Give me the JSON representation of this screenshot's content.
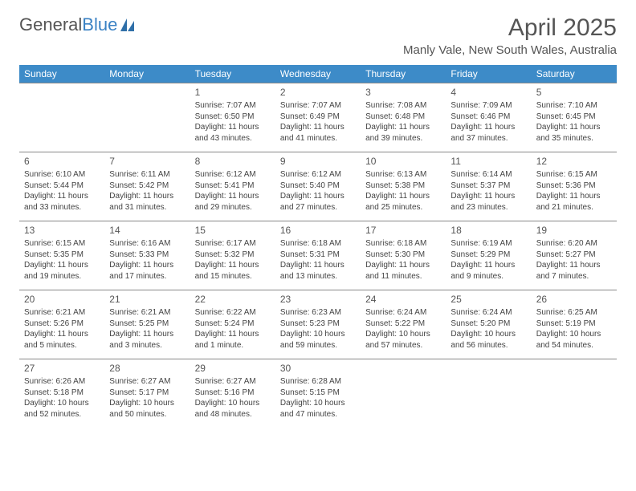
{
  "brand": {
    "part1": "General",
    "part2": "Blue"
  },
  "title": "April 2025",
  "location": "Manly Vale, New South Wales, Australia",
  "colors": {
    "header_bg": "#3d8bc8",
    "header_fg": "#ffffff",
    "cell_border": "#888888",
    "text": "#444444",
    "brand_blue": "#3b82c4"
  },
  "fonts": {
    "title_size": 30,
    "location_size": 15,
    "dayheader_size": 12,
    "daynum_size": 12,
    "body_size": 10
  },
  "day_headers": [
    "Sunday",
    "Monday",
    "Tuesday",
    "Wednesday",
    "Thursday",
    "Friday",
    "Saturday"
  ],
  "weeks": [
    [
      null,
      null,
      {
        "n": "1",
        "sr": "Sunrise: 7:07 AM",
        "ss": "Sunset: 6:50 PM",
        "dl": "Daylight: 11 hours and 43 minutes."
      },
      {
        "n": "2",
        "sr": "Sunrise: 7:07 AM",
        "ss": "Sunset: 6:49 PM",
        "dl": "Daylight: 11 hours and 41 minutes."
      },
      {
        "n": "3",
        "sr": "Sunrise: 7:08 AM",
        "ss": "Sunset: 6:48 PM",
        "dl": "Daylight: 11 hours and 39 minutes."
      },
      {
        "n": "4",
        "sr": "Sunrise: 7:09 AM",
        "ss": "Sunset: 6:46 PM",
        "dl": "Daylight: 11 hours and 37 minutes."
      },
      {
        "n": "5",
        "sr": "Sunrise: 7:10 AM",
        "ss": "Sunset: 6:45 PM",
        "dl": "Daylight: 11 hours and 35 minutes."
      }
    ],
    [
      {
        "n": "6",
        "sr": "Sunrise: 6:10 AM",
        "ss": "Sunset: 5:44 PM",
        "dl": "Daylight: 11 hours and 33 minutes."
      },
      {
        "n": "7",
        "sr": "Sunrise: 6:11 AM",
        "ss": "Sunset: 5:42 PM",
        "dl": "Daylight: 11 hours and 31 minutes."
      },
      {
        "n": "8",
        "sr": "Sunrise: 6:12 AM",
        "ss": "Sunset: 5:41 PM",
        "dl": "Daylight: 11 hours and 29 minutes."
      },
      {
        "n": "9",
        "sr": "Sunrise: 6:12 AM",
        "ss": "Sunset: 5:40 PM",
        "dl": "Daylight: 11 hours and 27 minutes."
      },
      {
        "n": "10",
        "sr": "Sunrise: 6:13 AM",
        "ss": "Sunset: 5:38 PM",
        "dl": "Daylight: 11 hours and 25 minutes."
      },
      {
        "n": "11",
        "sr": "Sunrise: 6:14 AM",
        "ss": "Sunset: 5:37 PM",
        "dl": "Daylight: 11 hours and 23 minutes."
      },
      {
        "n": "12",
        "sr": "Sunrise: 6:15 AM",
        "ss": "Sunset: 5:36 PM",
        "dl": "Daylight: 11 hours and 21 minutes."
      }
    ],
    [
      {
        "n": "13",
        "sr": "Sunrise: 6:15 AM",
        "ss": "Sunset: 5:35 PM",
        "dl": "Daylight: 11 hours and 19 minutes."
      },
      {
        "n": "14",
        "sr": "Sunrise: 6:16 AM",
        "ss": "Sunset: 5:33 PM",
        "dl": "Daylight: 11 hours and 17 minutes."
      },
      {
        "n": "15",
        "sr": "Sunrise: 6:17 AM",
        "ss": "Sunset: 5:32 PM",
        "dl": "Daylight: 11 hours and 15 minutes."
      },
      {
        "n": "16",
        "sr": "Sunrise: 6:18 AM",
        "ss": "Sunset: 5:31 PM",
        "dl": "Daylight: 11 hours and 13 minutes."
      },
      {
        "n": "17",
        "sr": "Sunrise: 6:18 AM",
        "ss": "Sunset: 5:30 PM",
        "dl": "Daylight: 11 hours and 11 minutes."
      },
      {
        "n": "18",
        "sr": "Sunrise: 6:19 AM",
        "ss": "Sunset: 5:29 PM",
        "dl": "Daylight: 11 hours and 9 minutes."
      },
      {
        "n": "19",
        "sr": "Sunrise: 6:20 AM",
        "ss": "Sunset: 5:27 PM",
        "dl": "Daylight: 11 hours and 7 minutes."
      }
    ],
    [
      {
        "n": "20",
        "sr": "Sunrise: 6:21 AM",
        "ss": "Sunset: 5:26 PM",
        "dl": "Daylight: 11 hours and 5 minutes."
      },
      {
        "n": "21",
        "sr": "Sunrise: 6:21 AM",
        "ss": "Sunset: 5:25 PM",
        "dl": "Daylight: 11 hours and 3 minutes."
      },
      {
        "n": "22",
        "sr": "Sunrise: 6:22 AM",
        "ss": "Sunset: 5:24 PM",
        "dl": "Daylight: 11 hours and 1 minute."
      },
      {
        "n": "23",
        "sr": "Sunrise: 6:23 AM",
        "ss": "Sunset: 5:23 PM",
        "dl": "Daylight: 10 hours and 59 minutes."
      },
      {
        "n": "24",
        "sr": "Sunrise: 6:24 AM",
        "ss": "Sunset: 5:22 PM",
        "dl": "Daylight: 10 hours and 57 minutes."
      },
      {
        "n": "25",
        "sr": "Sunrise: 6:24 AM",
        "ss": "Sunset: 5:20 PM",
        "dl": "Daylight: 10 hours and 56 minutes."
      },
      {
        "n": "26",
        "sr": "Sunrise: 6:25 AM",
        "ss": "Sunset: 5:19 PM",
        "dl": "Daylight: 10 hours and 54 minutes."
      }
    ],
    [
      {
        "n": "27",
        "sr": "Sunrise: 6:26 AM",
        "ss": "Sunset: 5:18 PM",
        "dl": "Daylight: 10 hours and 52 minutes."
      },
      {
        "n": "28",
        "sr": "Sunrise: 6:27 AM",
        "ss": "Sunset: 5:17 PM",
        "dl": "Daylight: 10 hours and 50 minutes."
      },
      {
        "n": "29",
        "sr": "Sunrise: 6:27 AM",
        "ss": "Sunset: 5:16 PM",
        "dl": "Daylight: 10 hours and 48 minutes."
      },
      {
        "n": "30",
        "sr": "Sunrise: 6:28 AM",
        "ss": "Sunset: 5:15 PM",
        "dl": "Daylight: 10 hours and 47 minutes."
      },
      null,
      null,
      null
    ]
  ]
}
